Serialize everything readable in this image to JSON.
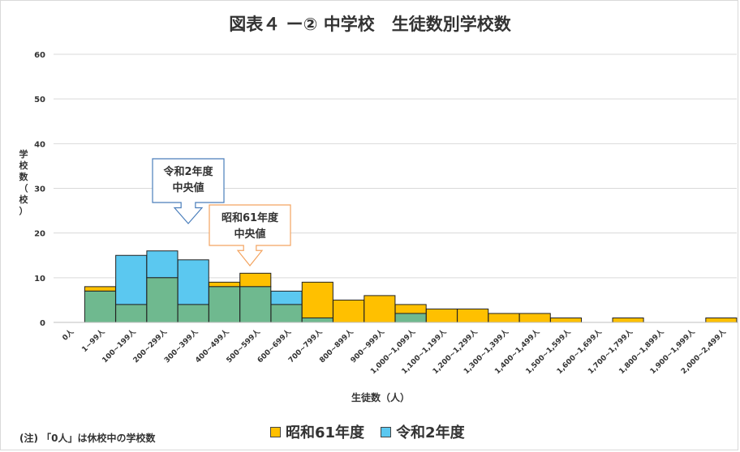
{
  "title": "図表４ ー② 中学校　生徒数別学校数",
  "chart_data": {
    "type": "bar",
    "stacked_overlay": true,
    "ylabel": "学校数（校）",
    "xlabel": "生徒数（人）",
    "ylim": [
      0,
      60
    ],
    "yticks": [
      0,
      10,
      20,
      30,
      40,
      50,
      60
    ],
    "grid": true,
    "legend_position": "bottom",
    "categories": [
      "0人",
      "1~99人",
      "100~199人",
      "200~299人",
      "300~399人",
      "400~499人",
      "500~599人",
      "600~699人",
      "700~799人",
      "800~899人",
      "900~999人",
      "1,000~1,099人",
      "1,100~1,199人",
      "1,200~1,299人",
      "1,300~1,399人",
      "1,400~1,499人",
      "1,500~1,599人",
      "1,600~1,699人",
      "1,700~1,799人",
      "1,800~1,899人",
      "1,900~1,999人",
      "2,000~2,499人"
    ],
    "series": [
      {
        "name": "昭和61年度",
        "color": "#ffc000",
        "values": [
          0,
          8,
          4,
          10,
          4,
          9,
          11,
          4,
          9,
          5,
          6,
          4,
          3,
          3,
          2,
          2,
          1,
          0,
          1,
          0,
          0,
          1
        ]
      },
      {
        "name": "令和2年度",
        "color": "#5bc8f0",
        "values": [
          0,
          7,
          15,
          16,
          14,
          8,
          8,
          7,
          1,
          0,
          0,
          2,
          0,
          0,
          0,
          0,
          0,
          0,
          0,
          0,
          0,
          0
        ]
      }
    ],
    "overlap_color": "#6fb98f",
    "annotations": [
      {
        "lines": [
          "令和2年度",
          "中央値"
        ],
        "category": "300~399人",
        "border_color": "#4a7ebb"
      },
      {
        "lines": [
          "昭和61年度",
          "中央値"
        ],
        "category": "500~599人",
        "border_color": "#f4a460"
      }
    ]
  },
  "note": "(注) 「0人」は休校中の学校数"
}
